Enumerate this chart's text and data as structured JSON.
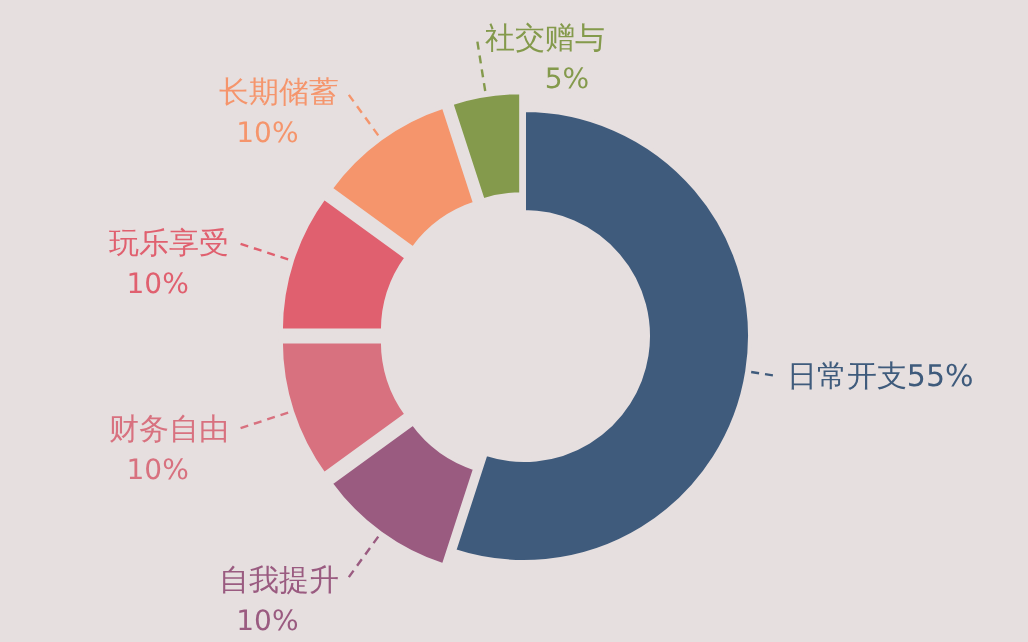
{
  "chart_data": {
    "type": "donut",
    "categories": [
      "日常开支",
      "自我提升",
      "财务自由",
      "玩乐享受",
      "长期储蓄",
      "社交赠与"
    ],
    "values": [
      55,
      10,
      10,
      10,
      10,
      5
    ],
    "value_labels": [
      "55%",
      "10%",
      "10%",
      "10%",
      "10%",
      "5%"
    ],
    "colors": [
      "#3f5b7c",
      "#9a5b80",
      "#d8717f",
      "#e0606f",
      "#f5956c",
      "#849a4c"
    ]
  }
}
